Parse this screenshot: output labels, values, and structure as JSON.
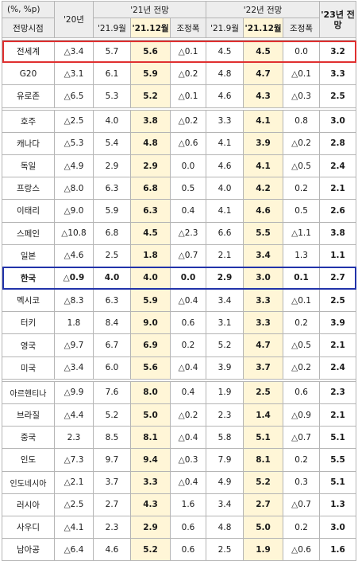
{
  "header": {
    "unit": "(%, %p)",
    "base_label": "전망시점",
    "y20": "'20년",
    "f21": "'21년 전망",
    "f22": "'22년 전망",
    "f23": "'23년 전망",
    "sub": [
      "'21.9월",
      "'21.12월",
      "조정폭",
      "'21.9월",
      "'21.12월",
      "조정폭"
    ]
  },
  "colors": {
    "highlight_col": "#fff6d7",
    "world_box": "#e03030",
    "korea_box": "#2233aa",
    "korea_text": "#1a3fb0"
  },
  "groups": [
    {
      "rows": [
        {
          "name": "전세계",
          "y20": "△3.4",
          "s21": "5.7",
          "d21": "5.6",
          "a21": "△0.1",
          "s22": "4.5",
          "d22": "4.5",
          "a22": "0.0",
          "y23": "3.2"
        },
        {
          "name": "G20",
          "y20": "△3.1",
          "s21": "6.1",
          "d21": "5.9",
          "a21": "△0.2",
          "s22": "4.8",
          "d22": "4.7",
          "a22": "△0.1",
          "y23": "3.3"
        },
        {
          "name": "유로존",
          "y20": "△6.5",
          "s21": "5.3",
          "d21": "5.2",
          "a21": "△0.1",
          "s22": "4.6",
          "d22": "4.3",
          "a22": "△0.3",
          "y23": "2.5"
        }
      ]
    },
    {
      "rows": [
        {
          "name": "호주",
          "y20": "△2.5",
          "s21": "4.0",
          "d21": "3.8",
          "a21": "△0.2",
          "s22": "3.3",
          "d22": "4.1",
          "a22": "0.8",
          "y23": "3.0"
        },
        {
          "name": "캐나다",
          "y20": "△5.3",
          "s21": "5.4",
          "d21": "4.8",
          "a21": "△0.6",
          "s22": "4.1",
          "d22": "3.9",
          "a22": "△0.2",
          "y23": "2.8"
        },
        {
          "name": "독일",
          "y20": "△4.9",
          "s21": "2.9",
          "d21": "2.9",
          "a21": "0.0",
          "s22": "4.6",
          "d22": "4.1",
          "a22": "△0.5",
          "y23": "2.4"
        },
        {
          "name": "프랑스",
          "y20": "△8.0",
          "s21": "6.3",
          "d21": "6.8",
          "a21": "0.5",
          "s22": "4.0",
          "d22": "4.2",
          "a22": "0.2",
          "y23": "2.1"
        },
        {
          "name": "이태리",
          "y20": "△9.0",
          "s21": "5.9",
          "d21": "6.3",
          "a21": "0.4",
          "s22": "4.1",
          "d22": "4.6",
          "a22": "0.5",
          "y23": "2.6"
        },
        {
          "name": "스페인",
          "y20": "△10.8",
          "s21": "6.8",
          "d21": "4.5",
          "a21": "△2.3",
          "s22": "6.6",
          "d22": "5.5",
          "a22": "△1.1",
          "y23": "3.8"
        },
        {
          "name": "일본",
          "y20": "△4.6",
          "s21": "2.5",
          "d21": "1.8",
          "a21": "△0.7",
          "s22": "2.1",
          "d22": "3.4",
          "a22": "1.3",
          "y23": "1.1"
        },
        {
          "name": "한국",
          "y20": "△0.9",
          "s21": "4.0",
          "d21": "4.0",
          "a21": "0.0",
          "s22": "2.9",
          "d22": "3.0",
          "a22": "0.1",
          "y23": "2.7"
        },
        {
          "name": "멕시코",
          "y20": "△8.3",
          "s21": "6.3",
          "d21": "5.9",
          "a21": "△0.4",
          "s22": "3.4",
          "d22": "3.3",
          "a22": "△0.1",
          "y23": "2.5"
        },
        {
          "name": "터키",
          "y20": "1.8",
          "s21": "8.4",
          "d21": "9.0",
          "a21": "0.6",
          "s22": "3.1",
          "d22": "3.3",
          "a22": "0.2",
          "y23": "3.9"
        },
        {
          "name": "영국",
          "y20": "△9.7",
          "s21": "6.7",
          "d21": "6.9",
          "a21": "0.2",
          "s22": "5.2",
          "d22": "4.7",
          "a22": "△0.5",
          "y23": "2.1"
        },
        {
          "name": "미국",
          "y20": "△3.4",
          "s21": "6.0",
          "d21": "5.6",
          "a21": "△0.4",
          "s22": "3.9",
          "d22": "3.7",
          "a22": "△0.2",
          "y23": "2.4"
        }
      ]
    },
    {
      "rows": [
        {
          "name": "아르헨티나",
          "y20": "△9.9",
          "s21": "7.6",
          "d21": "8.0",
          "a21": "0.4",
          "s22": "1.9",
          "d22": "2.5",
          "a22": "0.6",
          "y23": "2.3"
        },
        {
          "name": "브라질",
          "y20": "△4.4",
          "s21": "5.2",
          "d21": "5.0",
          "a21": "△0.2",
          "s22": "2.3",
          "d22": "1.4",
          "a22": "△0.9",
          "y23": "2.1"
        },
        {
          "name": "중국",
          "y20": "2.3",
          "s21": "8.5",
          "d21": "8.1",
          "a21": "△0.4",
          "s22": "5.8",
          "d22": "5.1",
          "a22": "△0.7",
          "y23": "5.1"
        },
        {
          "name": "인도",
          "y20": "△7.3",
          "s21": "9.7",
          "d21": "9.4",
          "a21": "△0.3",
          "s22": "7.9",
          "d22": "8.1",
          "a22": "0.2",
          "y23": "5.5"
        },
        {
          "name": "인도네시아",
          "y20": "△2.1",
          "s21": "3.7",
          "d21": "3.3",
          "a21": "△0.4",
          "s22": "4.9",
          "d22": "5.2",
          "a22": "0.3",
          "y23": "5.1"
        },
        {
          "name": "러시아",
          "y20": "△2.5",
          "s21": "2.7",
          "d21": "4.3",
          "a21": "1.6",
          "s22": "3.4",
          "d22": "2.7",
          "a22": "△0.7",
          "y23": "1.3"
        },
        {
          "name": "사우디",
          "y20": "△4.1",
          "s21": "2.3",
          "d21": "2.9",
          "a21": "0.6",
          "s22": "4.8",
          "d22": "5.0",
          "a22": "0.2",
          "y23": "3.0"
        },
        {
          "name": "남아공",
          "y20": "△6.4",
          "s21": "4.6",
          "d21": "5.2",
          "a21": "0.6",
          "s22": "2.5",
          "d22": "1.9",
          "a22": "△0.6",
          "y23": "1.6"
        }
      ]
    }
  ]
}
